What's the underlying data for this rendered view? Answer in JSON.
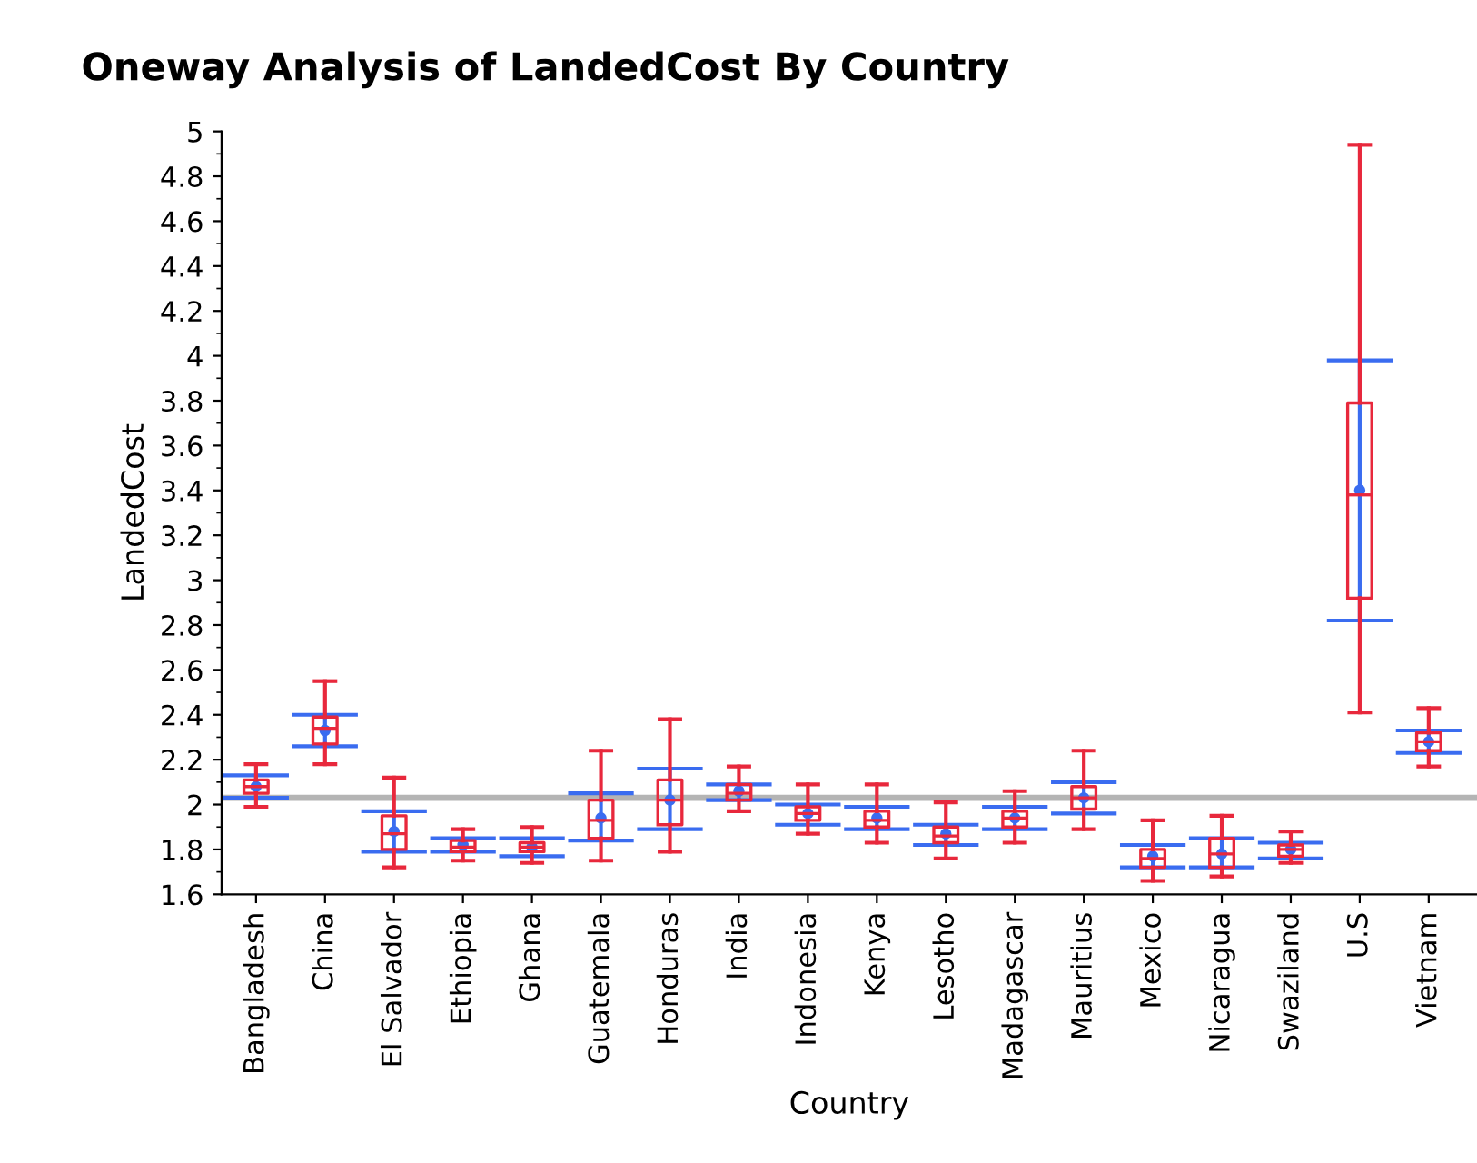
{
  "chart_data": {
    "type": "box",
    "title": "Oneway Analysis of LandedCost By Country",
    "xlabel": "Country",
    "ylabel": "LandedCost",
    "categories": [
      "Bangladesh",
      "China",
      "El Salvador",
      "Ethiopia",
      "Ghana",
      "Guatemala",
      "Honduras",
      "India",
      "Indonesia",
      "Kenya",
      "Lesotho",
      "Madagascar",
      "Mauritius",
      "Mexico",
      "Nicaragua",
      "Swaziland",
      "U.S",
      "Vietnam"
    ],
    "ylim": [
      1.6,
      5
    ],
    "yticks": [
      1.6,
      1.8,
      2,
      2.2,
      2.4,
      2.6,
      2.8,
      3,
      3.2,
      3.4,
      3.6,
      3.8,
      4,
      4.2,
      4.4,
      4.6,
      4.8,
      5
    ],
    "grid": false,
    "series": [
      {
        "color": "#e8283c",
        "boxes": [
          {
            "low": 1.99,
            "q1": 2.05,
            "median": 2.08,
            "q3": 2.11,
            "high": 2.18
          },
          {
            "low": 2.18,
            "q1": 2.27,
            "median": 2.34,
            "q3": 2.39,
            "high": 2.55
          },
          {
            "low": 1.72,
            "q1": 1.8,
            "median": 1.87,
            "q3": 1.95,
            "high": 2.12
          },
          {
            "low": 1.75,
            "q1": 1.79,
            "median": 1.81,
            "q3": 1.84,
            "high": 1.89
          },
          {
            "low": 1.74,
            "q1": 1.79,
            "median": 1.81,
            "q3": 1.83,
            "high": 1.9
          },
          {
            "low": 1.75,
            "q1": 1.85,
            "median": 1.93,
            "q3": 2.02,
            "high": 2.24
          },
          {
            "low": 1.79,
            "q1": 1.91,
            "median": 2.02,
            "q3": 2.11,
            "high": 2.38
          },
          {
            "low": 1.97,
            "q1": 2.02,
            "median": 2.05,
            "q3": 2.09,
            "high": 2.17
          },
          {
            "low": 1.87,
            "q1": 1.93,
            "median": 1.96,
            "q3": 1.99,
            "high": 2.09
          },
          {
            "low": 1.83,
            "q1": 1.9,
            "median": 1.93,
            "q3": 1.97,
            "high": 2.09
          },
          {
            "low": 1.76,
            "q1": 1.83,
            "median": 1.86,
            "q3": 1.9,
            "high": 2.01
          },
          {
            "low": 1.83,
            "q1": 1.9,
            "median": 1.94,
            "q3": 1.97,
            "high": 2.06
          },
          {
            "low": 1.89,
            "q1": 1.98,
            "median": 2.03,
            "q3": 2.08,
            "high": 2.24
          },
          {
            "low": 1.66,
            "q1": 1.72,
            "median": 1.76,
            "q3": 1.8,
            "high": 1.93
          },
          {
            "low": 1.68,
            "q1": 1.72,
            "median": 1.78,
            "q3": 1.85,
            "high": 1.95
          },
          {
            "low": 1.74,
            "q1": 1.77,
            "median": 1.8,
            "q3": 1.82,
            "high": 1.88
          },
          {
            "low": 2.41,
            "q1": 2.92,
            "median": 3.38,
            "q3": 3.79,
            "high": 4.94
          },
          {
            "low": 2.17,
            "q1": 2.24,
            "median": 2.28,
            "q3": 2.32,
            "high": 2.43
          }
        ]
      },
      {
        "type": "scatter",
        "marker": "circle",
        "color": "#3a6cf0",
        "values": [
          2.08,
          2.33,
          1.88,
          1.82,
          1.81,
          1.94,
          2.02,
          2.06,
          1.96,
          1.94,
          1.87,
          1.94,
          2.03,
          1.77,
          1.78,
          1.8,
          3.4,
          2.28
        ],
        "errors": [
          [
            2.03,
            2.13
          ],
          [
            2.26,
            2.4
          ],
          [
            1.79,
            1.97
          ],
          [
            1.79,
            1.85
          ],
          [
            1.77,
            1.85
          ],
          [
            1.84,
            2.05
          ],
          [
            1.89,
            2.16
          ],
          [
            2.02,
            2.09
          ],
          [
            1.91,
            2.0
          ],
          [
            1.89,
            1.99
          ],
          [
            1.82,
            1.91
          ],
          [
            1.89,
            1.99
          ],
          [
            1.96,
            2.1
          ],
          [
            1.72,
            1.82
          ],
          [
            1.72,
            1.85
          ],
          [
            1.76,
            1.83
          ],
          [
            2.82,
            3.98
          ],
          [
            2.23,
            2.33
          ]
        ]
      }
    ],
    "ref_lines": [
      {
        "axis": "y",
        "value": 2.03,
        "color": "#b4b4b4"
      }
    ]
  }
}
